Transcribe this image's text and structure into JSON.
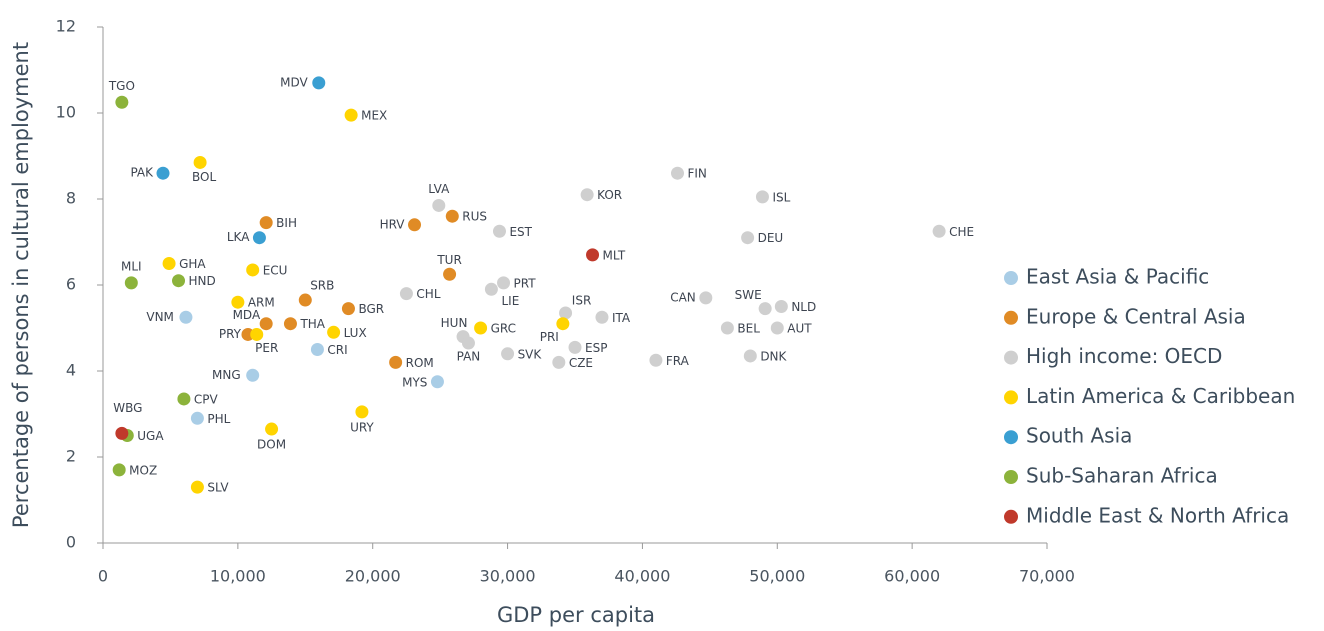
{
  "chart_data": {
    "type": "scatter",
    "xlabel": "GDP per capita",
    "ylabel": "Percentage of persons in cultural employment",
    "xlim": [
      0,
      70000
    ],
    "ylim": [
      0,
      12
    ],
    "xticks": [
      0,
      {
        "value": 10000,
        "label": "10,000"
      },
      {
        "value": 20000,
        "label": "20,000"
      },
      {
        "value": 30000,
        "label": "30,000"
      },
      {
        "value": 40000,
        "label": "40,000"
      },
      {
        "value": 50000,
        "label": "50,000"
      },
      {
        "value": 60000,
        "label": "60,000"
      },
      {
        "value": 70000,
        "label": "70,000"
      }
    ],
    "yticks": [
      0,
      2,
      4,
      6,
      8,
      10,
      12
    ],
    "legend": "right",
    "series": [
      {
        "name": "East Asia & Pacific",
        "color": "#a9cde6",
        "labels": [
          "VNM",
          "MNG",
          "PHL",
          "CRI",
          "MYS"
        ],
        "x": [
          6150,
          11100,
          7000,
          15900,
          24800
        ],
        "values": [
          5.25,
          3.9,
          2.9,
          4.5,
          3.75
        ]
      },
      {
        "name": "Europe & Central Asia",
        "color": "#e08b25",
        "labels": [
          "BIH",
          "HRV",
          "RUS",
          "TUR",
          "SRB",
          "BGR",
          "MDA",
          "THA",
          "PRY",
          "ROM"
        ],
        "x": [
          12100,
          23100,
          25900,
          25700,
          15000,
          18200,
          12100,
          13900,
          10750,
          21700
        ],
        "values": [
          7.45,
          7.4,
          7.6,
          6.25,
          5.65,
          5.45,
          5.1,
          5.1,
          4.85,
          4.2
        ]
      },
      {
        "name": "High income: OECD",
        "color": "#cfcfcf",
        "labels": [
          "LVA",
          "EST",
          "KOR",
          "FIN",
          "ISL",
          "DEU",
          "CHE",
          "PRT",
          "LIE",
          "CHL",
          "ISR",
          "ITA",
          "CAN",
          "SWE",
          "NLD",
          "BEL",
          "AUT",
          "DNK",
          "HUN",
          "PAN",
          "SVK",
          "ESP",
          "CZE",
          "FRA"
        ],
        "x": [
          24900,
          29400,
          35900,
          42600,
          48900,
          47800,
          62000,
          29700,
          28800,
          22500,
          34300,
          37000,
          44700,
          49100,
          50300,
          46300,
          50000,
          48000,
          26700,
          27100,
          30000,
          35000,
          33800,
          41000
        ],
        "values": [
          7.85,
          7.25,
          8.1,
          8.6,
          8.05,
          7.1,
          7.25,
          6.05,
          5.9,
          5.8,
          5.35,
          5.25,
          5.7,
          5.45,
          5.5,
          5.0,
          5.0,
          4.35,
          4.8,
          4.65,
          4.4,
          4.55,
          4.2,
          4.25
        ]
      },
      {
        "name": "Latin America & Caribbean",
        "color": "#ffd400",
        "labels": [
          "MEX",
          "BOL",
          "GHA",
          "ECU",
          "ARM",
          "PER",
          "LUX",
          "GRC",
          "PRI",
          "URY",
          "DOM",
          "SLV"
        ],
        "x": [
          18400,
          7200,
          4900,
          11100,
          10000,
          11400,
          17100,
          28000,
          34100,
          19200,
          12500,
          7000
        ],
        "values": [
          9.95,
          8.85,
          6.5,
          6.35,
          5.6,
          4.85,
          4.9,
          5.0,
          5.1,
          3.05,
          2.65,
          1.3
        ]
      },
      {
        "name": "South Asia",
        "color": "#3a9fd2",
        "labels": [
          "MDV",
          "PAK",
          "LKA"
        ],
        "x": [
          16000,
          4450,
          11600
        ],
        "values": [
          10.7,
          8.6,
          7.1
        ]
      },
      {
        "name": "Sub-Saharan Africa",
        "color": "#8cb33b",
        "labels": [
          "TGO",
          "MLI",
          "HND",
          "CPV",
          "UGA",
          "MOZ"
        ],
        "x": [
          1400,
          2100,
          5600,
          6000,
          1800,
          1200
        ],
        "values": [
          10.25,
          6.05,
          6.1,
          3.35,
          2.5,
          1.7
        ]
      },
      {
        "name": "Middle East & North Africa",
        "color": "#c0392b",
        "labels": [
          "MLT",
          "WBG"
        ],
        "x": [
          36300,
          1400
        ],
        "values": [
          6.7,
          2.55
        ]
      }
    ]
  }
}
